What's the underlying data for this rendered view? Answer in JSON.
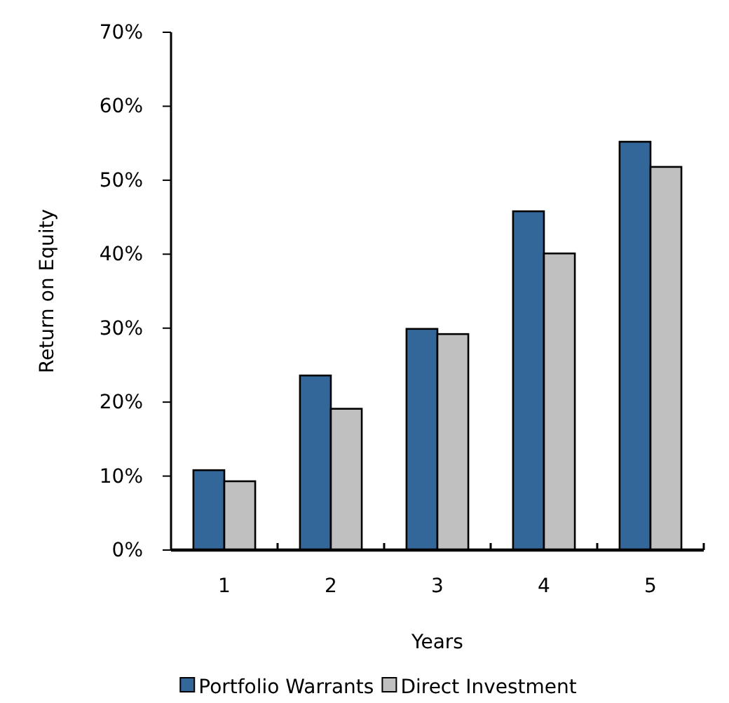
{
  "chart_data": {
    "type": "bar",
    "xlabel": "Years",
    "ylabel": "Return on Equity",
    "categories": [
      "1",
      "2",
      "3",
      "4",
      "5"
    ],
    "series": [
      {
        "name": "Portfolio Warrants",
        "color": "#336699",
        "values": [
          10.8,
          23.6,
          29.9,
          45.8,
          55.2
        ]
      },
      {
        "name": "Direct Investment",
        "color": "#c0c0c0",
        "values": [
          9.3,
          19.1,
          29.2,
          40.1,
          51.8
        ]
      }
    ],
    "ylim": [
      0,
      70
    ],
    "yticks": [
      {
        "value": 0,
        "label": "0%"
      },
      {
        "value": 10,
        "label": "10%"
      },
      {
        "value": 20,
        "label": "20%"
      },
      {
        "value": 30,
        "label": "30%"
      },
      {
        "value": 40,
        "label": "40%"
      },
      {
        "value": 50,
        "label": "50%"
      },
      {
        "value": 60,
        "label": "60%"
      },
      {
        "value": 70,
        "label": "70%"
      }
    ],
    "grid": false,
    "legend": "bottom"
  }
}
